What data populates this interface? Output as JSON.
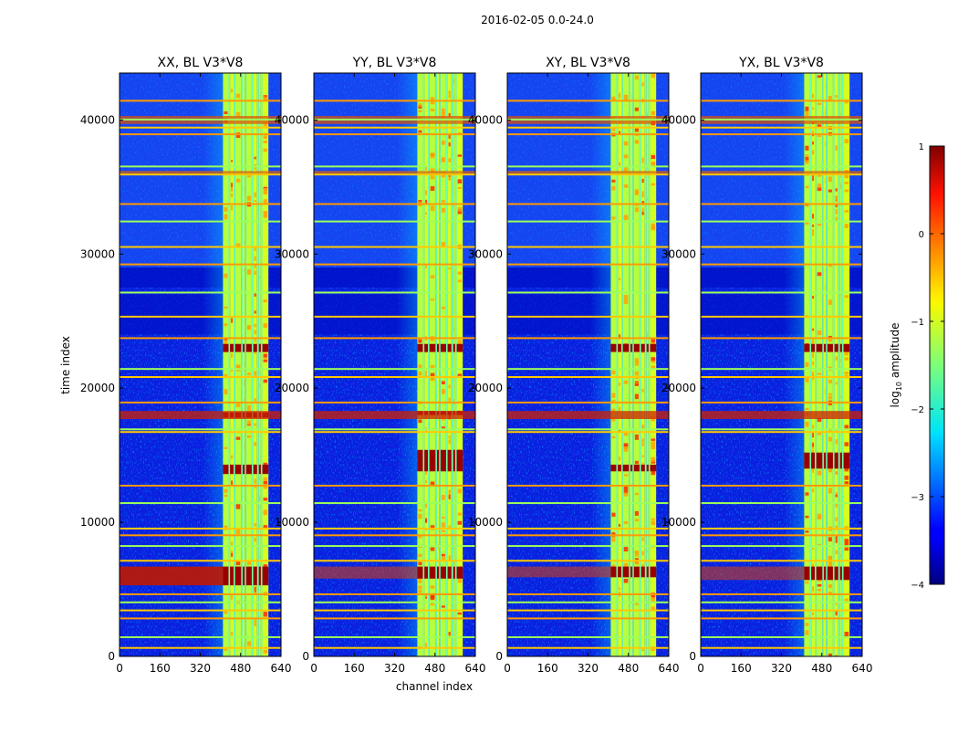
{
  "chart_data": {
    "type": "heatmap",
    "suptitle": "2016-02-05 0.0-24.0",
    "xlabel": "channel index",
    "ylabel": "time index",
    "xlim": [
      0,
      640
    ],
    "ylim": [
      0,
      43500
    ],
    "xticks": [
      0,
      160,
      320,
      480,
      640
    ],
    "yticks": [
      0,
      10000,
      20000,
      30000,
      40000
    ],
    "colorbar": {
      "label_base": "log",
      "label_sub": "10",
      "label_rest": " amplitude",
      "range": [
        -4,
        1
      ],
      "ticks": [
        1,
        0,
        -1,
        -2,
        -3,
        -4
      ],
      "tick_labels": [
        "1",
        "0",
        "−1",
        "−2",
        "−3",
        "−4"
      ],
      "colormap": "jet"
    },
    "panels": [
      {
        "title": "XX, BL V3*V8",
        "hot_bands": [
          [
            5300,
            6700
          ],
          [
            17800,
            18200
          ],
          [
            13600,
            14300
          ],
          [
            22700,
            23300
          ]
        ]
      },
      {
        "title": "YY, BL V3*V8",
        "hot_bands": [
          [
            5800,
            6700
          ],
          [
            13800,
            15400
          ],
          [
            22700,
            23300
          ],
          [
            18000,
            18300
          ]
        ]
      },
      {
        "title": "XY, BL V3*V8",
        "hot_bands": [
          [
            5900,
            6700
          ],
          [
            22700,
            23300
          ],
          [
            13800,
            14300
          ]
        ]
      },
      {
        "title": "YX, BL V3*V8",
        "hot_bands": [
          [
            5700,
            6700
          ],
          [
            22700,
            23300
          ],
          [
            14000,
            15200
          ]
        ]
      }
    ],
    "bright_channel_range": [
      410,
      590
    ],
    "flagged_rows": [
      700,
      1500,
      2900,
      3500,
      4100,
      4700,
      7200,
      8300,
      9100,
      9600,
      11500,
      12800,
      16800,
      17000,
      19000,
      20900,
      21500,
      23800,
      25400,
      27200,
      29300,
      30600,
      32500,
      33800,
      36000,
      36600,
      39000,
      39500,
      40100,
      41500
    ]
  }
}
